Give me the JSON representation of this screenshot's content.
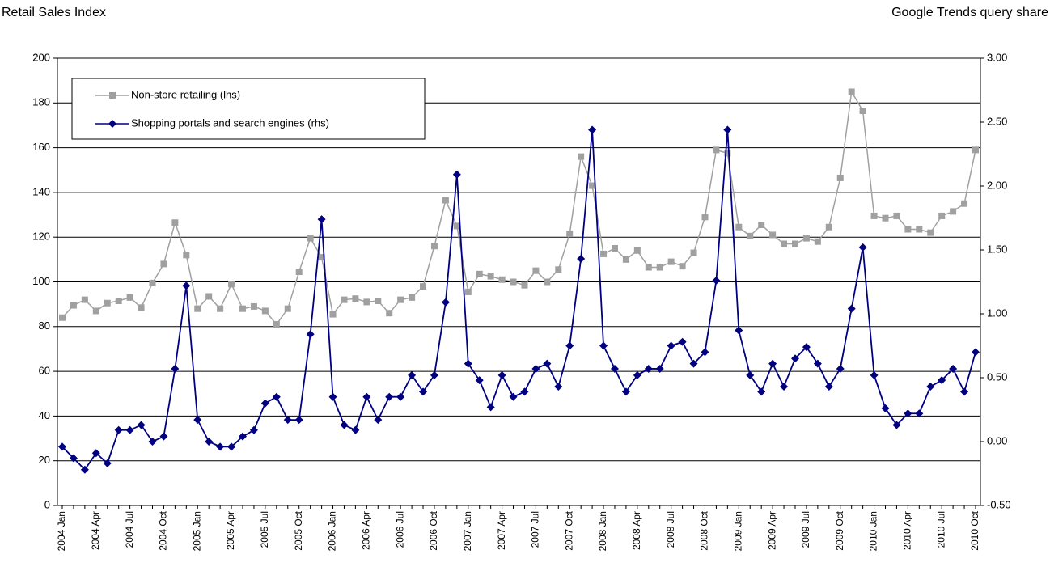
{
  "chart_data": {
    "type": "line",
    "y_label": "Retail Sales Index",
    "y2_label": "Google Trends query share",
    "categories": [
      "2004 Jan",
      null,
      null,
      "2004 Apr",
      null,
      null,
      "2004 Jul",
      null,
      null,
      "2004 Oct",
      null,
      null,
      "2005 Jan",
      null,
      null,
      "2005 Apr",
      null,
      null,
      "2005 Jul",
      null,
      null,
      "2005 Oct",
      null,
      null,
      "2006 Jan",
      null,
      null,
      "2006 Apr",
      null,
      null,
      "2006 Jul",
      null,
      null,
      "2006 Oct",
      null,
      null,
      "2007 Jan",
      null,
      null,
      "2007 Apr",
      null,
      null,
      "2007 Jul",
      null,
      null,
      "2007 Oct",
      null,
      null,
      "2008 Jan",
      null,
      null,
      "2008 Apr",
      null,
      null,
      "2008 Jul",
      null,
      null,
      "2008 Oct",
      null,
      null,
      "2009 Jan",
      null,
      null,
      "2009 Apr",
      null,
      null,
      "2009 Jul",
      null,
      null,
      "2009 Oct",
      null,
      null,
      "2010 Jan",
      null,
      null,
      "2010 Apr",
      null,
      null,
      "2010 Jul",
      null,
      null,
      "2010 Oct"
    ],
    "series": [
      {
        "name": "Non-store retailing (lhs)",
        "color": "#a0a0a0",
        "marker": "square",
        "values": [
          84,
          89.5,
          92,
          87,
          90.5,
          91.5,
          93,
          88.5,
          99.5,
          108,
          126.5,
          112,
          88,
          93.5,
          88,
          99,
          88,
          89,
          87,
          81,
          88,
          104.5,
          119.5,
          111,
          85.5,
          92,
          92.5,
          91,
          91.5,
          86,
          92,
          93,
          98,
          116,
          136.5,
          125,
          95.5,
          103.5,
          102.5,
          101,
          100,
          98.5,
          105,
          100,
          105.5,
          121.5,
          156,
          143,
          112.5,
          115,
          110,
          114,
          106.5,
          106.5,
          109,
          107,
          113,
          129,
          159,
          157.5,
          124.5,
          120.5,
          125.5,
          121,
          117,
          117,
          119.5,
          118,
          124.5,
          146.5,
          185,
          176.5,
          129.5,
          128.5,
          129.5,
          123.5,
          123.5,
          122,
          129.5,
          131.5,
          135,
          159
        ]
      },
      {
        "name": "Shopping portals and search engines (rhs)",
        "color": "#000080",
        "marker": "diamond",
        "axis": "y2",
        "values": [
          -0.04,
          -0.13,
          -0.22,
          -0.09,
          -0.17,
          0.09,
          0.09,
          0.13,
          0.0,
          0.04,
          0.57,
          1.22,
          0.17,
          0.0,
          -0.04,
          -0.04,
          0.04,
          0.09,
          0.3,
          0.35,
          0.17,
          0.17,
          0.84,
          1.74,
          0.35,
          0.13,
          0.09,
          0.35,
          0.17,
          0.35,
          0.35,
          0.52,
          0.39,
          0.52,
          1.09,
          2.09,
          0.61,
          0.48,
          0.27,
          0.52,
          0.35,
          0.39,
          0.57,
          0.61,
          0.43,
          0.75,
          1.43,
          2.44,
          0.75,
          0.57,
          0.39,
          0.52,
          0.57,
          0.57,
          0.75,
          0.78,
          0.61,
          0.7,
          1.26,
          2.44,
          0.87,
          0.52,
          0.39,
          0.61,
          0.43,
          0.65,
          0.74,
          0.61,
          0.43,
          0.57,
          1.04,
          1.52,
          0.52,
          0.26,
          0.13,
          0.22,
          0.22,
          0.43,
          0.48,
          0.57,
          0.39,
          0.7
        ]
      }
    ],
    "ylim": [
      0,
      200
    ],
    "yticks": [
      0,
      20,
      40,
      60,
      80,
      100,
      120,
      140,
      160,
      180,
      200
    ],
    "y2lim": [
      -0.5,
      3.0
    ],
    "y2ticks": [
      {
        "value": -0.5,
        "label": "-0.50"
      },
      {
        "value": 0,
        "label": "0.00"
      },
      {
        "value": 0.5,
        "label": "0.50"
      },
      {
        "value": 1,
        "label": "1.00"
      },
      {
        "value": 1.5,
        "label": "1.50"
      },
      {
        "value": 2,
        "label": "2.00"
      },
      {
        "value": 2.5,
        "label": "2.50"
      },
      {
        "value": 3,
        "label": "3.00"
      }
    ],
    "grid": true,
    "legend": "upper left"
  }
}
